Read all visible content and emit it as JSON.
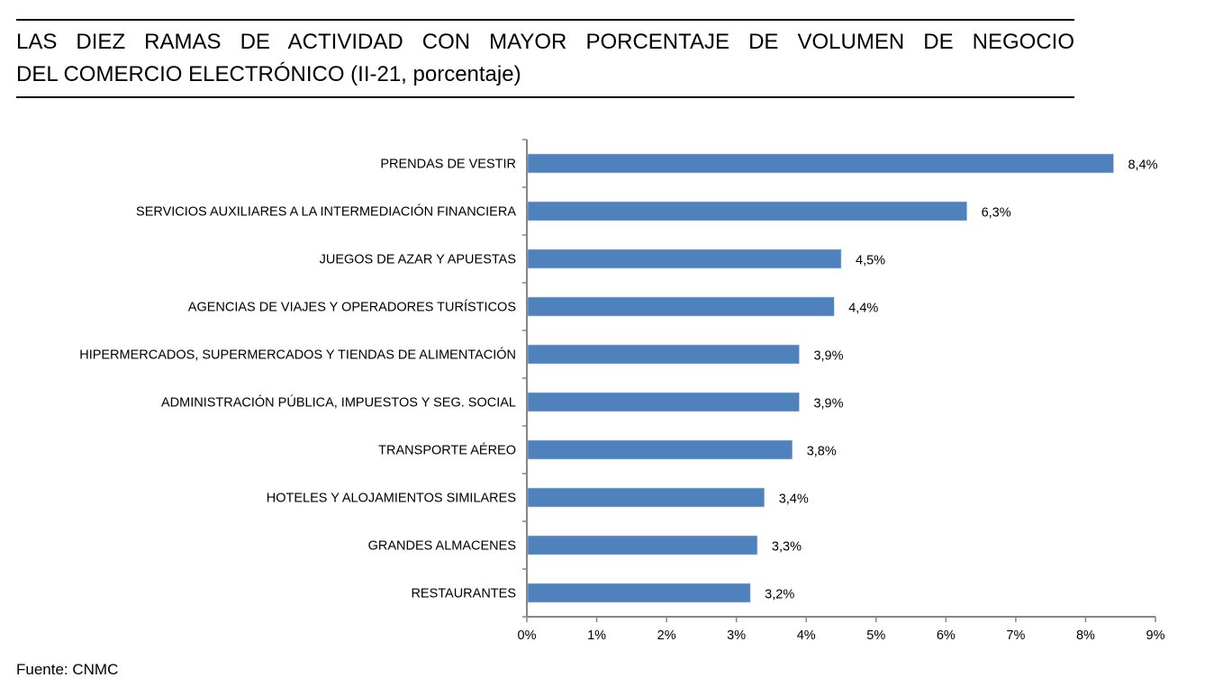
{
  "title": {
    "line1": "LAS DIEZ RAMAS DE ACTIVIDAD CON MAYOR PORCENTAJE DE VOLUMEN DE NEGOCIO",
    "line2": "DEL COMERCIO ELECTRÓNICO (II-21, porcentaje)"
  },
  "source": "Fuente: CNMC",
  "colors": {
    "bar": "#4f81bd",
    "axis": "#868686",
    "text": "#000000"
  },
  "chart_data": {
    "type": "bar",
    "orientation": "horizontal",
    "title": "LAS DIEZ RAMAS DE ACTIVIDAD CON MAYOR PORCENTAJE DE VOLUMEN DE NEGOCIO DEL COMERCIO ELECTRÓNICO (II-21, porcentaje)",
    "categories": [
      "PRENDAS DE VESTIR",
      "SERVICIOS AUXILIARES A LA INTERMEDIACIÓN FINANCIERA",
      "JUEGOS DE AZAR Y APUESTAS",
      "AGENCIAS DE VIAJES Y OPERADORES TURÍSTICOS",
      "HIPERMERCADOS, SUPERMERCADOS Y TIENDAS DE ALIMENTACIÓN",
      "ADMINISTRACIÓN PÚBLICA, IMPUESTOS Y SEG. SOCIAL",
      "TRANSPORTE AÉREO",
      "HOTELES  Y ALOJAMIENTOS SIMILARES",
      "GRANDES ALMACENES",
      "RESTAURANTES"
    ],
    "values": [
      8.4,
      6.3,
      4.5,
      4.4,
      3.9,
      3.9,
      3.8,
      3.4,
      3.3,
      3.2
    ],
    "data_labels": [
      "8,4%",
      "6,3%",
      "4,5%",
      "4,4%",
      "3,9%",
      "3,9%",
      "3,8%",
      "3,4%",
      "3,3%",
      "3,2%"
    ],
    "xlabel": "",
    "ylabel": "",
    "xlim": [
      0,
      9
    ],
    "x_ticks": [
      0,
      1,
      2,
      3,
      4,
      5,
      6,
      7,
      8,
      9
    ],
    "x_tick_labels": [
      "0%",
      "1%",
      "2%",
      "3%",
      "4%",
      "5%",
      "6%",
      "7%",
      "8%",
      "9%"
    ],
    "grid": false,
    "legend": "none",
    "source": "Fuente: CNMC"
  }
}
